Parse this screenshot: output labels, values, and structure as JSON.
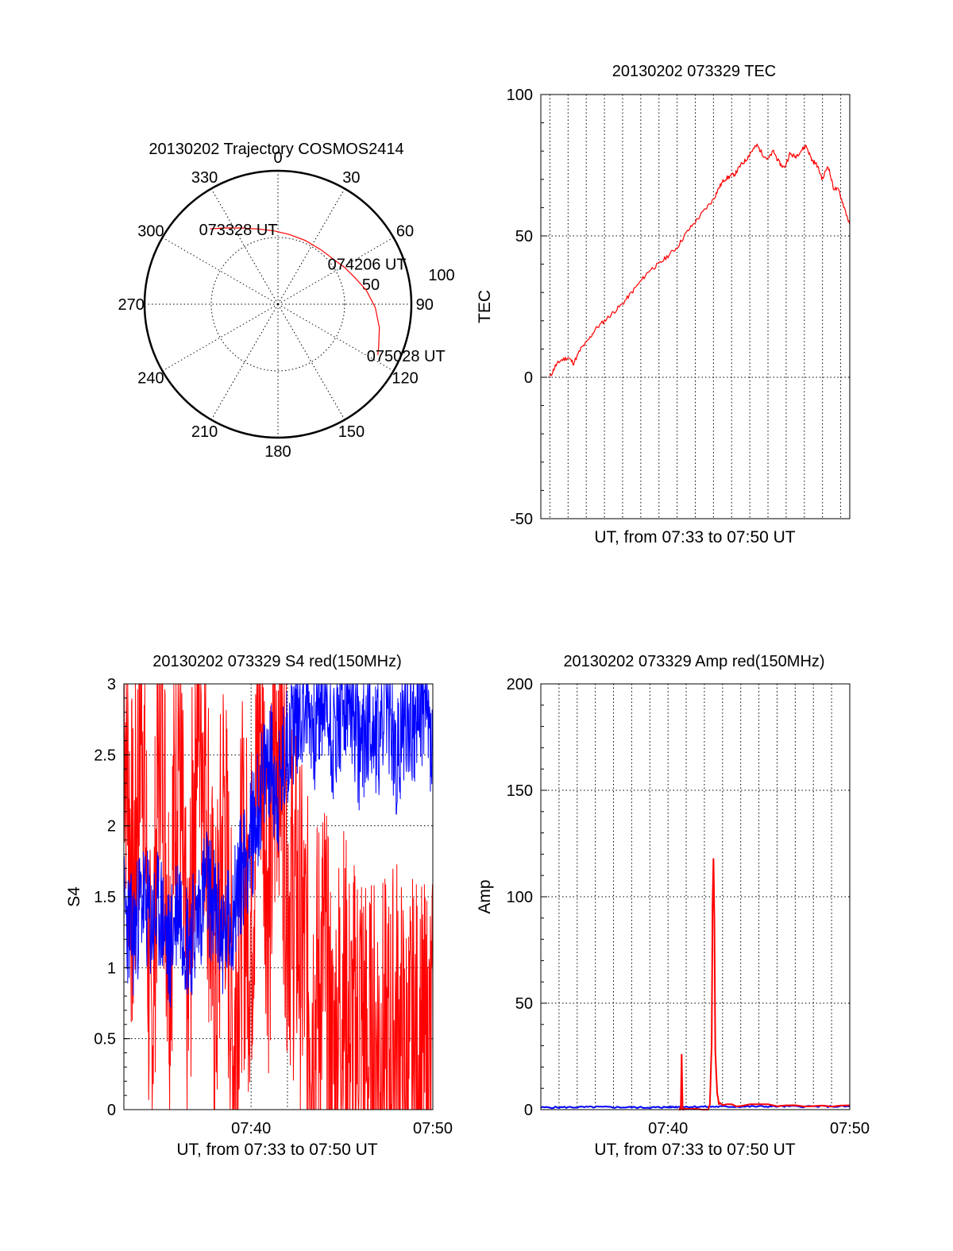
{
  "colors": {
    "red": "#ff0000",
    "blue": "#0000ff",
    "grid": "#000000"
  },
  "chart_data": [
    {
      "type": "polar-trajectory",
      "title": "20130202 Trajectory COSMOS2414",
      "azimuth_labels": [
        "0",
        "30",
        "60",
        "90",
        "120",
        "150",
        "180",
        "210",
        "240",
        "270",
        "300",
        "330"
      ],
      "radial_labels": [
        "50",
        "100"
      ],
      "rlim": [
        0,
        100
      ],
      "grid": true,
      "series": [
        {
          "color": "red",
          "points": [
            {
              "az": 318,
              "r": 76
            },
            {
              "az": 326,
              "r": 69
            },
            {
              "az": 335,
              "r": 63
            },
            {
              "az": 346,
              "r": 58
            },
            {
              "az": 357,
              "r": 55
            },
            {
              "az": 9,
              "r": 53
            },
            {
              "az": 23,
              "r": 52
            },
            {
              "az": 38,
              "r": 52
            },
            {
              "az": 53,
              "r": 54
            },
            {
              "az": 61,
              "r": 57
            },
            {
              "az": 71,
              "r": 61
            },
            {
              "az": 81,
              "r": 67
            },
            {
              "az": 92,
              "r": 73
            },
            {
              "az": 103,
              "r": 78
            },
            {
              "az": 113,
              "r": 82
            },
            {
              "az": 117,
              "r": 84
            }
          ]
        }
      ],
      "annotations": [
        {
          "text": "073328 UT",
          "az": 318,
          "r": 76
        },
        {
          "text": "074206 UT",
          "az": 56,
          "r": 55
        },
        {
          "text": "075028 UT",
          "az": 117,
          "r": 84
        }
      ]
    },
    {
      "type": "line",
      "title": "20130202 073329 TEC",
      "xlabel": "UT, from 07:33 to 07:50 UT",
      "ylabel": "TEC",
      "xlim": [
        33.0,
        50.0
      ],
      "ylim": [
        -50,
        100
      ],
      "yticks": [
        -50,
        0,
        50,
        100
      ],
      "x_gridlines": [
        33.5,
        34.5,
        35.5,
        36.5,
        37.5,
        38.5,
        39.5,
        40.5,
        41.5,
        42.5,
        43.5,
        44.5,
        45.5,
        46.5,
        47.5,
        48.5,
        49.5
      ],
      "grid": true,
      "series": [
        {
          "color": "red",
          "x": [
            33.5,
            33.8,
            34.1,
            34.5,
            34.8,
            35.2,
            35.6,
            36.0,
            36.5,
            37.0,
            37.5,
            38.0,
            38.5,
            39.0,
            39.5,
            40.0,
            40.5,
            41.0,
            41.5,
            42.0,
            42.5,
            42.8,
            43.1,
            43.4,
            43.7,
            44.0,
            44.3,
            44.6,
            44.9,
            45.2,
            45.5,
            45.8,
            46.1,
            46.4,
            46.7,
            47.0,
            47.3,
            47.6,
            47.9,
            48.2,
            48.5,
            48.8,
            49.1,
            49.4,
            49.7,
            50.0
          ],
          "y": [
            0,
            4,
            6,
            7,
            5,
            10,
            13,
            17,
            20,
            23,
            26,
            30,
            34,
            38,
            40,
            43,
            46,
            51,
            55,
            59,
            63,
            67,
            70,
            71,
            72,
            75,
            77,
            80,
            82,
            79,
            77,
            80,
            76,
            74,
            79,
            78,
            80,
            82,
            77,
            75,
            70,
            75,
            67,
            66,
            60,
            54
          ]
        }
      ]
    },
    {
      "type": "line",
      "title": "20130202 073329 S4 red(150MHz)",
      "xlabel": "UT, from 07:33 to 07:50 UT",
      "ylabel": "S4",
      "xlim": [
        33.0,
        50.0
      ],
      "ylim": [
        0,
        3
      ],
      "xticks": [
        {
          "value": 40,
          "label": "07:40"
        },
        {
          "value": 50,
          "label": "07:50"
        }
      ],
      "yticks": [
        0,
        0.5,
        1,
        1.5,
        2,
        2.5,
        3
      ],
      "x_gridlines": [
        40,
        42
      ],
      "grid": true,
      "series": [
        {
          "color": "red",
          "x": [
            33.0,
            33.5,
            34.0,
            34.5,
            35.0,
            35.5,
            36.0,
            36.5,
            37.0,
            37.5,
            38.0,
            38.5,
            39.0,
            39.5,
            40.0,
            40.5,
            41.0,
            41.5,
            42.0,
            42.5,
            43.0,
            43.5,
            44.0,
            44.5,
            45.0,
            45.5,
            46.0,
            46.5,
            47.0,
            47.5,
            48.0,
            48.5,
            49.0,
            49.5,
            50.0
          ],
          "y": [
            3.0,
            1.5,
            3.0,
            0.3,
            3.0,
            1.2,
            2.8,
            0.4,
            3.0,
            2.5,
            0.6,
            2.2,
            0.4,
            1.6,
            1.3,
            2.9,
            1.4,
            2.9,
            1.6,
            1.4,
            1.0,
            0.7,
            1.1,
            0.2,
            0.9,
            0.4,
            0.7,
            0.3,
            0.5,
            0.3,
            0.6,
            0.2,
            0.4,
            0.3,
            0.4
          ]
        },
        {
          "color": "blue",
          "x": [
            33.0,
            33.5,
            34.0,
            34.5,
            35.0,
            35.5,
            36.0,
            36.5,
            37.0,
            37.5,
            38.0,
            38.5,
            39.0,
            39.5,
            40.0,
            40.5,
            41.0,
            41.5,
            42.0,
            42.5,
            43.0,
            43.5,
            44.0,
            44.5,
            45.0,
            45.5,
            46.0,
            46.5,
            47.0,
            47.5,
            48.0,
            48.5,
            49.0,
            49.5,
            50.0
          ],
          "y": [
            1.4,
            1.2,
            1.5,
            1.3,
            1.4,
            1.1,
            1.5,
            1.2,
            1.3,
            1.6,
            1.4,
            1.2,
            1.4,
            1.7,
            1.9,
            2.2,
            2.5,
            2.2,
            2.6,
            2.8,
            2.9,
            2.7,
            2.9,
            2.6,
            2.8,
            2.9,
            2.5,
            2.8,
            2.6,
            2.9,
            2.4,
            2.8,
            2.7,
            2.9,
            2.5
          ]
        }
      ]
    },
    {
      "type": "line",
      "title": "20130202 073329 Amp red(150MHz)",
      "xlabel": "UT, from 07:33 to 07:50 UT",
      "ylabel": "Amp",
      "xlim": [
        33.0,
        50.0
      ],
      "ylim": [
        0,
        200
      ],
      "xticks": [
        {
          "value": 40,
          "label": "07:40"
        },
        {
          "value": 50,
          "label": "07:50"
        }
      ],
      "yticks": [
        0,
        50,
        100,
        150,
        200
      ],
      "x_gridlines": [
        34,
        35,
        36,
        37,
        38,
        39,
        40,
        41,
        42,
        43,
        44,
        45,
        46,
        47,
        48,
        49
      ],
      "grid": true,
      "series": [
        {
          "color": "blue",
          "x": [
            33.0,
            36.0,
            39.0,
            40.6,
            43.0,
            46.0,
            50.0
          ],
          "y": [
            1.0,
            1.2,
            1.0,
            1.3,
            1.4,
            1.5,
            1.5
          ]
        },
        {
          "color": "red",
          "x": [
            40.6,
            40.7,
            40.75,
            40.8,
            40.9,
            42.2,
            42.3,
            42.4,
            42.45,
            42.5,
            42.55,
            42.6,
            42.7,
            42.8,
            43.0,
            44.0,
            46.0,
            48.0,
            50.0
          ],
          "y": [
            0,
            0,
            26,
            0,
            0,
            0,
            2,
            30,
            96,
            118,
            90,
            28,
            8,
            3,
            2,
            2,
            2,
            2,
            2
          ]
        }
      ]
    }
  ]
}
